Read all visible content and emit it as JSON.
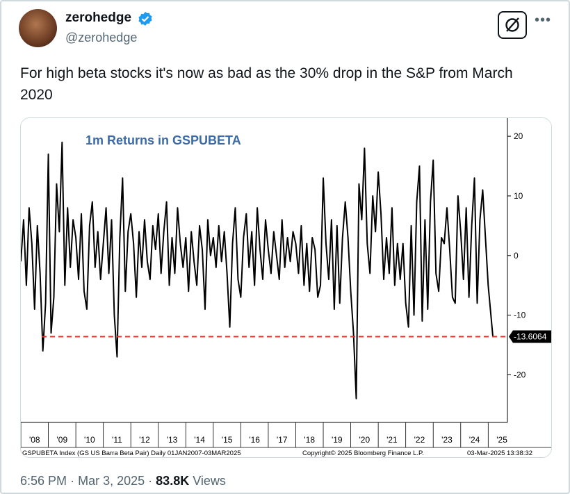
{
  "user": {
    "name": "zerohedge",
    "handle": "@zerohedge"
  },
  "text": "For high beta stocks it's now as bad as the 30% drop in the S&P from March 2020",
  "chart_data": {
    "type": "line",
    "title": "1m Returns in GSPUBETA",
    "color": "#000000",
    "x": [
      2008,
      2008.1,
      2008.2,
      2008.3,
      2008.4,
      2008.5,
      2008.6,
      2008.7,
      2008.8,
      2008.9,
      2009,
      2009.1,
      2009.2,
      2009.3,
      2009.4,
      2009.5,
      2009.6,
      2009.7,
      2009.8,
      2009.9,
      2010,
      2010.1,
      2010.2,
      2010.3,
      2010.4,
      2010.5,
      2010.6,
      2010.7,
      2010.8,
      2010.9,
      2011,
      2011.1,
      2011.2,
      2011.3,
      2011.4,
      2011.5,
      2011.6,
      2011.7,
      2011.8,
      2011.9,
      2012,
      2012.1,
      2012.2,
      2012.3,
      2012.4,
      2012.5,
      2012.6,
      2012.7,
      2012.8,
      2012.9,
      2013,
      2013.1,
      2013.2,
      2013.3,
      2013.4,
      2013.5,
      2013.6,
      2013.7,
      2013.8,
      2013.9,
      2014,
      2014.1,
      2014.2,
      2014.3,
      2014.4,
      2014.5,
      2014.6,
      2014.7,
      2014.8,
      2014.9,
      2015,
      2015.1,
      2015.2,
      2015.3,
      2015.4,
      2015.5,
      2015.6,
      2015.7,
      2015.8,
      2015.9,
      2016,
      2016.1,
      2016.2,
      2016.3,
      2016.4,
      2016.5,
      2016.6,
      2016.7,
      2016.8,
      2016.9,
      2017,
      2017.1,
      2017.2,
      2017.3,
      2017.4,
      2017.5,
      2017.6,
      2017.7,
      2017.8,
      2017.9,
      2018,
      2018.1,
      2018.2,
      2018.3,
      2018.4,
      2018.5,
      2018.6,
      2018.7,
      2018.8,
      2018.9,
      2019,
      2019.1,
      2019.2,
      2019.3,
      2019.4,
      2019.5,
      2019.6,
      2019.7,
      2019.8,
      2019.9,
      2020,
      2020.1,
      2020.2,
      2020.3,
      2020.4,
      2020.5,
      2020.6,
      2020.7,
      2020.8,
      2020.9,
      2021,
      2021.1,
      2021.2,
      2021.3,
      2021.4,
      2021.5,
      2021.6,
      2021.7,
      2021.8,
      2021.9,
      2022,
      2022.1,
      2022.2,
      2022.3,
      2022.4,
      2022.5,
      2022.6,
      2022.7,
      2022.8,
      2022.9,
      2023,
      2023.1,
      2023.2,
      2023.3,
      2023.4,
      2023.5,
      2023.6,
      2023.7,
      2023.8,
      2023.9,
      2024,
      2024.1,
      2024.2,
      2024.3,
      2024.4,
      2024.5,
      2024.6,
      2024.7,
      2024.8,
      2024.9,
      2025,
      2025.17
    ],
    "values": [
      -1,
      6,
      -5,
      8,
      2,
      -9,
      5,
      -3,
      -16,
      -8,
      17,
      -13,
      -7,
      12,
      4,
      19,
      -5,
      8,
      -2,
      6,
      3,
      -4,
      7,
      -6,
      -9,
      5,
      9,
      -2,
      4,
      -4,
      2,
      8,
      -3,
      6,
      -10,
      -17,
      3,
      13,
      -6,
      4,
      7,
      2,
      -7,
      4,
      -2,
      6,
      -1,
      -4,
      5,
      1,
      7,
      -3,
      4,
      9,
      -5,
      3,
      -3,
      8,
      2,
      -2,
      3,
      -6,
      4,
      -1,
      -5,
      5,
      1,
      -9,
      6,
      0,
      3,
      -2,
      5,
      -1,
      4,
      -3,
      -12,
      2,
      8,
      -4,
      -7,
      3,
      7,
      -2,
      4,
      -5,
      8,
      1,
      -4,
      6,
      1,
      -3,
      4,
      0,
      -4,
      6,
      -2,
      3,
      -1,
      4,
      2,
      -3,
      5,
      -5,
      2,
      -6,
      3,
      1,
      -7,
      -5,
      13,
      2,
      -4,
      6,
      -9,
      5,
      -8,
      3,
      9,
      3,
      -6,
      -13,
      -24,
      12,
      6,
      18,
      2,
      -3,
      10,
      4,
      14,
      7,
      -4,
      3,
      -3,
      8,
      -5,
      2,
      -4,
      2,
      -8,
      -12,
      5,
      -10,
      9,
      15,
      -11,
      6,
      -9,
      9,
      16,
      -3,
      -6,
      3,
      2,
      8,
      1,
      -7,
      -8,
      10,
      4,
      -4,
      8,
      -7,
      5,
      13,
      -8,
      6,
      11,
      3,
      -5,
      -13.6064
    ],
    "xlim": [
      2008,
      2025.7
    ],
    "xticks": [
      {
        "value": 2008.5,
        "label": "'08"
      },
      {
        "value": 2009.5,
        "label": "'09"
      },
      {
        "value": 2010.5,
        "label": "'10"
      },
      {
        "value": 2011.5,
        "label": "'11"
      },
      {
        "value": 2012.5,
        "label": "'12"
      },
      {
        "value": 2013.5,
        "label": "'13"
      },
      {
        "value": 2014.5,
        "label": "'14"
      },
      {
        "value": 2015.5,
        "label": "'15"
      },
      {
        "value": 2016.5,
        "label": "'16"
      },
      {
        "value": 2017.5,
        "label": "'17"
      },
      {
        "value": 2018.5,
        "label": "'18"
      },
      {
        "value": 2019.5,
        "label": "'19"
      },
      {
        "value": 2020.5,
        "label": "'20"
      },
      {
        "value": 2021.5,
        "label": "'21"
      },
      {
        "value": 2022.5,
        "label": "'22"
      },
      {
        "value": 2023.5,
        "label": "'23"
      },
      {
        "value": 2024.5,
        "label": "'24"
      },
      {
        "value": 2025.5,
        "label": "'25"
      }
    ],
    "ylim": [
      -28,
      22.7
    ],
    "yticks": [
      20,
      10,
      0,
      -10,
      -20
    ],
    "reference_line": -13.6064,
    "reference_color": "#e0352b",
    "footer": [
      "GSPUBETA Index (GS US Barra Beta Pair)  Daily 01JAN2007-03MAR2025",
      "Copyright© 2025 Bloomberg Finance L.P.",
      "03-Mar-2025 13:38:32"
    ]
  },
  "meta": {
    "time": "6:56 PM",
    "separator": "·",
    "date": "Mar 3, 2025",
    "views": "83.8K",
    "views_label": "Views"
  }
}
